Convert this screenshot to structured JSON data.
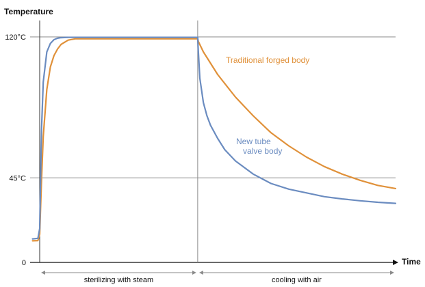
{
  "chart_data": {
    "type": "line",
    "title": "",
    "ylabel": "Temperature",
    "xlabel": "Time",
    "ylim": [
      0,
      120
    ],
    "y_ticks": [
      {
        "value": 0,
        "label": "0"
      },
      {
        "value": 45,
        "label": "45°C"
      },
      {
        "value": 120,
        "label": "120°C"
      }
    ],
    "x_range": [
      0,
      100
    ],
    "phase_boundary": 44.4,
    "phases": [
      {
        "label": "sterilizing with steam",
        "start": 0,
        "end": 44.4
      },
      {
        "label": "cooling with air",
        "start": 44.4,
        "end": 100
      }
    ],
    "series": [
      {
        "name": "Traditional forged body",
        "color": "#e0913a",
        "x": [
          -2,
          -0.5,
          0,
          0.5,
          1,
          2,
          3,
          4,
          5,
          6,
          8,
          10,
          12,
          44.4,
          44.6,
          46,
          50,
          55,
          60,
          65,
          70,
          75,
          80,
          85,
          90,
          95,
          100
        ],
        "y": [
          11.5,
          11.6,
          15,
          43,
          67,
          92,
          104,
          110,
          113.5,
          116,
          118.3,
          119,
          119,
          119,
          117.5,
          112,
          100,
          88,
          78,
          69,
          62,
          56,
          51,
          47,
          43.7,
          41,
          39.3
        ]
      },
      {
        "name": "New tube valve body",
        "color": "#6b8cc0",
        "x": [
          -2,
          -0.5,
          0,
          0.5,
          1,
          2,
          3,
          4,
          5,
          6,
          8,
          10,
          12,
          44.4,
          44.5,
          45,
          46,
          47,
          48,
          50,
          52,
          55,
          60,
          65,
          70,
          75,
          80,
          85,
          90,
          95,
          100
        ],
        "y": [
          12.5,
          12.8,
          18,
          70,
          96,
          112,
          116.5,
          118.5,
          119.3,
          119.6,
          119.8,
          119.8,
          119.8,
          119.8,
          115,
          98,
          85,
          78,
          73,
          66,
          60,
          54,
          47,
          42,
          39,
          37,
          35,
          33.8,
          32.8,
          32,
          31.4
        ]
      }
    ],
    "grid": "horizontal lines at y ticks",
    "annotations": [
      {
        "text": "Traditional forged body",
        "series": "Traditional forged body"
      },
      {
        "text": "New tube",
        "series": "New tube valve body"
      },
      {
        "text": "valve body",
        "series": "New tube valve body"
      }
    ]
  }
}
